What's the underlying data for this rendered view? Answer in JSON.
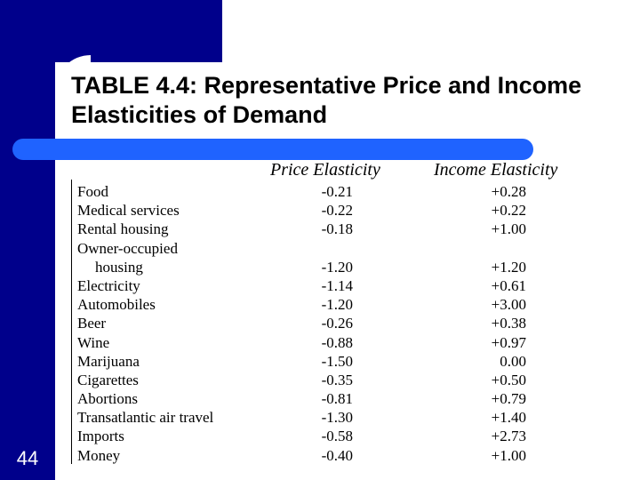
{
  "slide": {
    "title": "TABLE 4.4: Representative Price and Income Elasticities of Demand",
    "page_number": "44"
  },
  "table": {
    "headers": {
      "price": "Price Elasticity",
      "income": "Income Elasticity"
    },
    "rows": [
      {
        "name": "Food",
        "price": "-0.21",
        "income": "+0.28"
      },
      {
        "name": "Medical services",
        "price": "-0.22",
        "income": "+0.22"
      },
      {
        "name": "Rental housing",
        "price": "-0.18",
        "income": "+1.00"
      },
      {
        "name": "Owner-occupied",
        "price": "",
        "income": ""
      },
      {
        "name": "housing",
        "price": "-1.20",
        "income": "+1.20"
      },
      {
        "name": "Electricity",
        "price": "-1.14",
        "income": "+0.61"
      },
      {
        "name": "Automobiles",
        "price": "-1.20",
        "income": "+3.00"
      },
      {
        "name": "Beer",
        "price": "-0.26",
        "income": "+0.38"
      },
      {
        "name": "Wine",
        "price": "-0.88",
        "income": "+0.97"
      },
      {
        "name": "Marijuana",
        "price": "-1.50",
        "income": "0.00"
      },
      {
        "name": "Cigarettes",
        "price": "-0.35",
        "income": "+0.50"
      },
      {
        "name": "Abortions",
        "price": "-0.81",
        "income": "+0.79"
      },
      {
        "name": "Transatlantic air travel",
        "price": "-1.30",
        "income": "+1.40"
      },
      {
        "name": "Imports",
        "price": "-0.58",
        "income": "+2.73"
      },
      {
        "name": "Money",
        "price": "-0.40",
        "income": "+1.00"
      }
    ]
  },
  "colors": {
    "frame": "#00008b",
    "divider": "#1f63ff",
    "page_number_text": "#ffffff"
  }
}
